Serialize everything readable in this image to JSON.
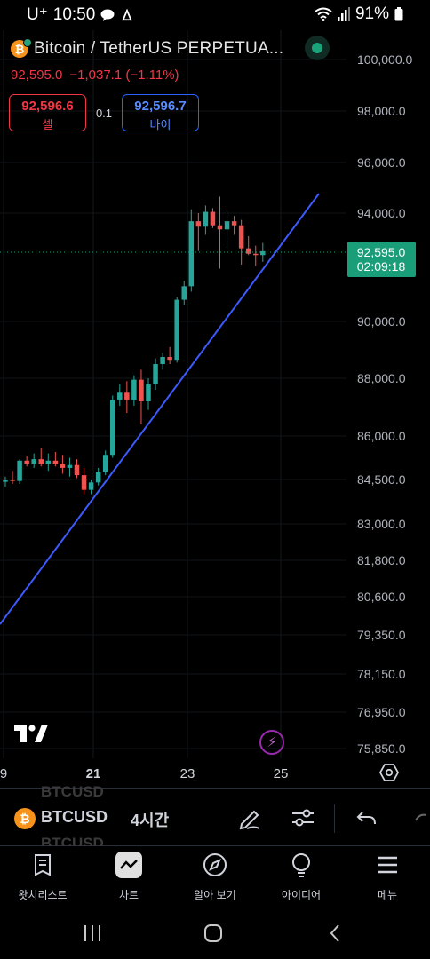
{
  "status_bar": {
    "carrier": "U⁺",
    "time": "10:50",
    "battery": "91%"
  },
  "header": {
    "symbol_title": "Bitcoin / TetherUS PERPETUA...",
    "last_price": "92,595.0",
    "change": "−1,037.1 (−1.11%)",
    "sell_price": "92,596.6",
    "sell_label": "셀",
    "spread": "0.1",
    "buy_price": "92,596.7",
    "buy_label": "바이"
  },
  "chart_data": {
    "type": "candlestick",
    "y_ticks": [
      "100,000.0",
      "98,000.0",
      "96,000.0",
      "94,000.0",
      "90,000.0",
      "88,000.0",
      "86,000.0",
      "84,500.0",
      "83,000.0",
      "81,800.0",
      "80,600.0",
      "79,350.0",
      "78,150.0",
      "76,950.0",
      "75,850.0"
    ],
    "x_ticks": [
      "9",
      "21",
      "23",
      "25"
    ],
    "current_price_label": "92,595.0",
    "countdown": "02:09:18",
    "candles": [
      {
        "o": 84420,
        "h": 84600,
        "l": 84250,
        "c": 84500
      },
      {
        "o": 84500,
        "h": 84800,
        "l": 84350,
        "c": 84450
      },
      {
        "o": 84450,
        "h": 85200,
        "l": 84350,
        "c": 85150
      },
      {
        "o": 85150,
        "h": 85300,
        "l": 84950,
        "c": 85050
      },
      {
        "o": 85050,
        "h": 85400,
        "l": 84900,
        "c": 85200
      },
      {
        "o": 85200,
        "h": 85600,
        "l": 84950,
        "c": 85050
      },
      {
        "o": 85050,
        "h": 85400,
        "l": 84800,
        "c": 85150
      },
      {
        "o": 85150,
        "h": 85450,
        "l": 84950,
        "c": 85050
      },
      {
        "o": 85050,
        "h": 85350,
        "l": 84700,
        "c": 84900
      },
      {
        "o": 84900,
        "h": 85250,
        "l": 84600,
        "c": 85000
      },
      {
        "o": 85000,
        "h": 85200,
        "l": 84550,
        "c": 84650
      },
      {
        "o": 84650,
        "h": 84900,
        "l": 84000,
        "c": 84150
      },
      {
        "o": 84150,
        "h": 84500,
        "l": 84000,
        "c": 84400
      },
      {
        "o": 84400,
        "h": 84900,
        "l": 84300,
        "c": 84750
      },
      {
        "o": 84750,
        "h": 85500,
        "l": 84650,
        "c": 85350
      },
      {
        "o": 85350,
        "h": 87400,
        "l": 85250,
        "c": 87250
      },
      {
        "o": 87250,
        "h": 87800,
        "l": 87050,
        "c": 87500
      },
      {
        "o": 87500,
        "h": 87900,
        "l": 86800,
        "c": 87250
      },
      {
        "o": 87250,
        "h": 88100,
        "l": 87050,
        "c": 87950
      },
      {
        "o": 87950,
        "h": 88300,
        "l": 86400,
        "c": 87200
      },
      {
        "o": 87200,
        "h": 88000,
        "l": 86900,
        "c": 87800
      },
      {
        "o": 87800,
        "h": 88700,
        "l": 87600,
        "c": 88500
      },
      {
        "o": 88500,
        "h": 88900,
        "l": 88300,
        "c": 88750
      },
      {
        "o": 88750,
        "h": 89100,
        "l": 88500,
        "c": 88650
      },
      {
        "o": 88650,
        "h": 90900,
        "l": 88550,
        "c": 90800
      },
      {
        "o": 90800,
        "h": 91500,
        "l": 90600,
        "c": 91300
      },
      {
        "o": 91300,
        "h": 94150,
        "l": 91100,
        "c": 93700
      },
      {
        "o": 93700,
        "h": 94000,
        "l": 92600,
        "c": 93500
      },
      {
        "o": 93500,
        "h": 94300,
        "l": 93200,
        "c": 94050
      },
      {
        "o": 94050,
        "h": 94200,
        "l": 93450,
        "c": 93550
      },
      {
        "o": 93550,
        "h": 94650,
        "l": 91950,
        "c": 93400
      },
      {
        "o": 93400,
        "h": 94100,
        "l": 92700,
        "c": 93700
      },
      {
        "o": 93700,
        "h": 93900,
        "l": 93200,
        "c": 93550
      },
      {
        "o": 93550,
        "h": 93750,
        "l": 92100,
        "c": 92700
      },
      {
        "o": 92700,
        "h": 93150,
        "l": 92450,
        "c": 92500
      },
      {
        "o": 92500,
        "h": 92800,
        "l": 92050,
        "c": 92450
      },
      {
        "o": 92450,
        "h": 92900,
        "l": 92200,
        "c": 92595
      }
    ],
    "colors": {
      "up": "#26a69a",
      "down": "#ef5350",
      "trendline": "#3d5afe",
      "price_tag": "#1a9e7a"
    }
  },
  "toolbar": {
    "ghost_symbol": "BTCUSD",
    "symbol": "BTCUSD",
    "interval": "4시간"
  },
  "bottom_nav": {
    "items": [
      {
        "label": "왓치리스트",
        "icon": "watchlist-icon"
      },
      {
        "label": "차트",
        "icon": "chart-icon"
      },
      {
        "label": "알아 보기",
        "icon": "explore-icon"
      },
      {
        "label": "아이디어",
        "icon": "ideas-icon"
      },
      {
        "label": "메뉴",
        "icon": "menu-icon"
      }
    ]
  }
}
